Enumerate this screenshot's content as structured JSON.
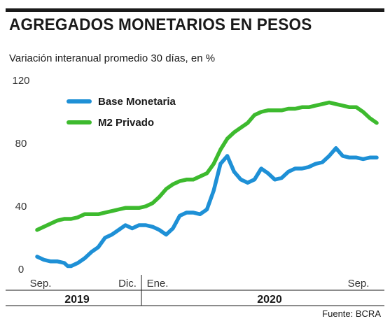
{
  "title": "AGREGADOS MONETARIOS EN PESOS",
  "subtitle": "Variación interanual promedio 30 días, en %",
  "source": "Fuente: BCRA",
  "chart_data": {
    "type": "line",
    "ylim": [
      0,
      120
    ],
    "y_ticks": [
      "120",
      "80",
      "40",
      "0"
    ],
    "y_tick_values": [
      120,
      80,
      40,
      0
    ],
    "x_tick_labels": [
      "Sep.",
      "Dic.",
      "Ene.",
      "Sep."
    ],
    "x_tick_positions": [
      0,
      0.35,
      0.4,
      1.0
    ],
    "year_labels": [
      "2019",
      "2020"
    ],
    "grid": false,
    "legend": "top-left",
    "series": [
      {
        "name": "Base Monetaria",
        "color": "#1e90d6",
        "x": [
          0,
          0.02,
          0.04,
          0.06,
          0.08,
          0.09,
          0.1,
          0.12,
          0.14,
          0.16,
          0.18,
          0.2,
          0.22,
          0.24,
          0.26,
          0.28,
          0.3,
          0.32,
          0.34,
          0.36,
          0.38,
          0.4,
          0.42,
          0.44,
          0.46,
          0.48,
          0.5,
          0.52,
          0.54,
          0.56,
          0.58,
          0.6,
          0.62,
          0.64,
          0.66,
          0.68,
          0.7,
          0.72,
          0.74,
          0.76,
          0.78,
          0.8,
          0.82,
          0.84,
          0.86,
          0.88,
          0.9,
          0.92,
          0.94,
          0.96,
          0.98,
          1.0
        ],
        "values": [
          8,
          6,
          5,
          5,
          4,
          2,
          2,
          4,
          7,
          11,
          14,
          20,
          22,
          25,
          28,
          26,
          28,
          28,
          27,
          25,
          22,
          26,
          34,
          36,
          36,
          35,
          38,
          50,
          67,
          72,
          62,
          57,
          55,
          57,
          64,
          61,
          57,
          58,
          62,
          64,
          64,
          65,
          67,
          68,
          72,
          77,
          72,
          71,
          71,
          70,
          71,
          71
        ]
      },
      {
        "name": "M2 Privado",
        "color": "#3dba2e",
        "x": [
          0,
          0.02,
          0.04,
          0.06,
          0.08,
          0.1,
          0.12,
          0.14,
          0.16,
          0.18,
          0.2,
          0.22,
          0.24,
          0.26,
          0.28,
          0.3,
          0.32,
          0.34,
          0.36,
          0.38,
          0.4,
          0.42,
          0.44,
          0.46,
          0.48,
          0.5,
          0.52,
          0.54,
          0.56,
          0.58,
          0.6,
          0.62,
          0.64,
          0.66,
          0.68,
          0.7,
          0.72,
          0.74,
          0.76,
          0.78,
          0.8,
          0.82,
          0.84,
          0.86,
          0.88,
          0.9,
          0.92,
          0.94,
          0.96,
          0.98,
          1.0
        ],
        "values": [
          25,
          27,
          29,
          31,
          32,
          32,
          33,
          35,
          35,
          35,
          36,
          37,
          38,
          39,
          39,
          39,
          40,
          42,
          46,
          51,
          54,
          56,
          57,
          57,
          59,
          61,
          67,
          76,
          83,
          87,
          90,
          93,
          98,
          100,
          101,
          101,
          101,
          102,
          102,
          103,
          103,
          104,
          105,
          106,
          105,
          104,
          103,
          103,
          100,
          96,
          93
        ]
      }
    ]
  }
}
